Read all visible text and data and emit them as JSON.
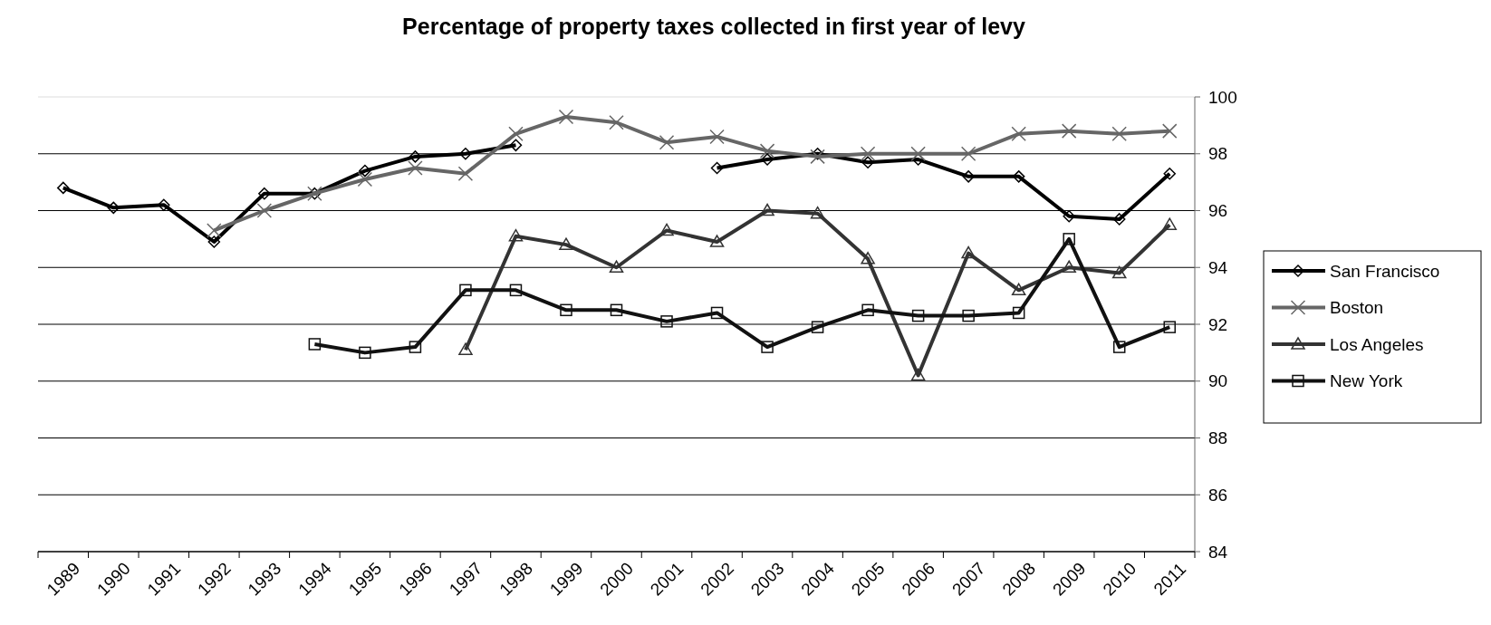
{
  "chart_data": {
    "type": "line",
    "title": "Percentage of property taxes collected in first year of levy",
    "categories": [
      "1989",
      "1990",
      "1991",
      "1992",
      "1993",
      "1994",
      "1995",
      "1996",
      "1997",
      "1998",
      "1999",
      "2000",
      "2001",
      "2002",
      "2003",
      "2004",
      "2005",
      "2006",
      "2007",
      "2008",
      "2009",
      "2010",
      "2011"
    ],
    "series": [
      {
        "name": "San Francisco",
        "color": "#000000",
        "marker": "diamond",
        "values": [
          96.8,
          96.1,
          96.2,
          94.9,
          96.6,
          96.6,
          97.4,
          97.9,
          98.0,
          98.3,
          null,
          null,
          null,
          97.5,
          97.8,
          98.0,
          97.7,
          97.8,
          97.2,
          97.2,
          95.8,
          95.7,
          97.3
        ]
      },
      {
        "name": "Boston",
        "color": "#666666",
        "marker": "cross",
        "values": [
          null,
          null,
          null,
          95.3,
          96.0,
          96.6,
          97.1,
          97.5,
          97.3,
          98.7,
          99.3,
          99.1,
          98.4,
          98.6,
          98.1,
          97.9,
          98.0,
          98.0,
          98.0,
          98.7,
          98.8,
          98.7,
          98.8
        ]
      },
      {
        "name": "Los Angeles",
        "color": "#333333",
        "marker": "triangle",
        "values": [
          null,
          null,
          null,
          null,
          null,
          null,
          null,
          null,
          91.1,
          95.1,
          94.8,
          94.0,
          95.3,
          94.9,
          96.0,
          95.9,
          94.3,
          90.2,
          94.5,
          93.2,
          94.0,
          93.8,
          95.5
        ]
      },
      {
        "name": "New York",
        "color": "#111111",
        "marker": "square",
        "values": [
          null,
          null,
          null,
          null,
          null,
          91.3,
          91.0,
          91.2,
          93.2,
          93.2,
          92.5,
          92.5,
          92.1,
          92.4,
          91.2,
          91.9,
          92.5,
          92.3,
          92.3,
          92.4,
          95.0,
          91.2,
          91.9
        ]
      }
    ],
    "ylim": [
      84,
      100
    ],
    "yticks": [
      84,
      86,
      88,
      90,
      92,
      94,
      96,
      98,
      100
    ],
    "grid": "y",
    "legend": "right",
    "line_style": "solid"
  }
}
